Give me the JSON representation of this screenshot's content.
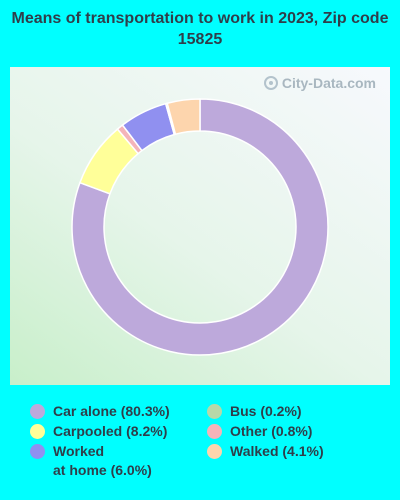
{
  "title": "Means of transportation to work in 2023, Zip code 15825",
  "watermark": "City-Data.com",
  "chart_data": {
    "type": "pie",
    "variant": "donut",
    "title": "Means of transportation to work in 2023, Zip code 15825",
    "legend_position": "bottom",
    "slices": [
      {
        "label": "Car alone (80.3%)",
        "value": 80.3,
        "color": "#bda9db"
      },
      {
        "label": "Carpooled (8.2%)",
        "value": 8.2,
        "color": "#ffff99"
      },
      {
        "label": "Other (0.8%)",
        "value": 0.8,
        "color": "#f4b4b9"
      },
      {
        "label": "Worked\nat home (6.0%)",
        "value": 6.0,
        "color": "#9090f0"
      },
      {
        "label": "Bus (0.2%)",
        "value": 0.2,
        "color": "#b7d8a8"
      },
      {
        "label": "Walked (4.1%)",
        "value": 4.1,
        "color": "#fdd5ad"
      }
    ]
  }
}
